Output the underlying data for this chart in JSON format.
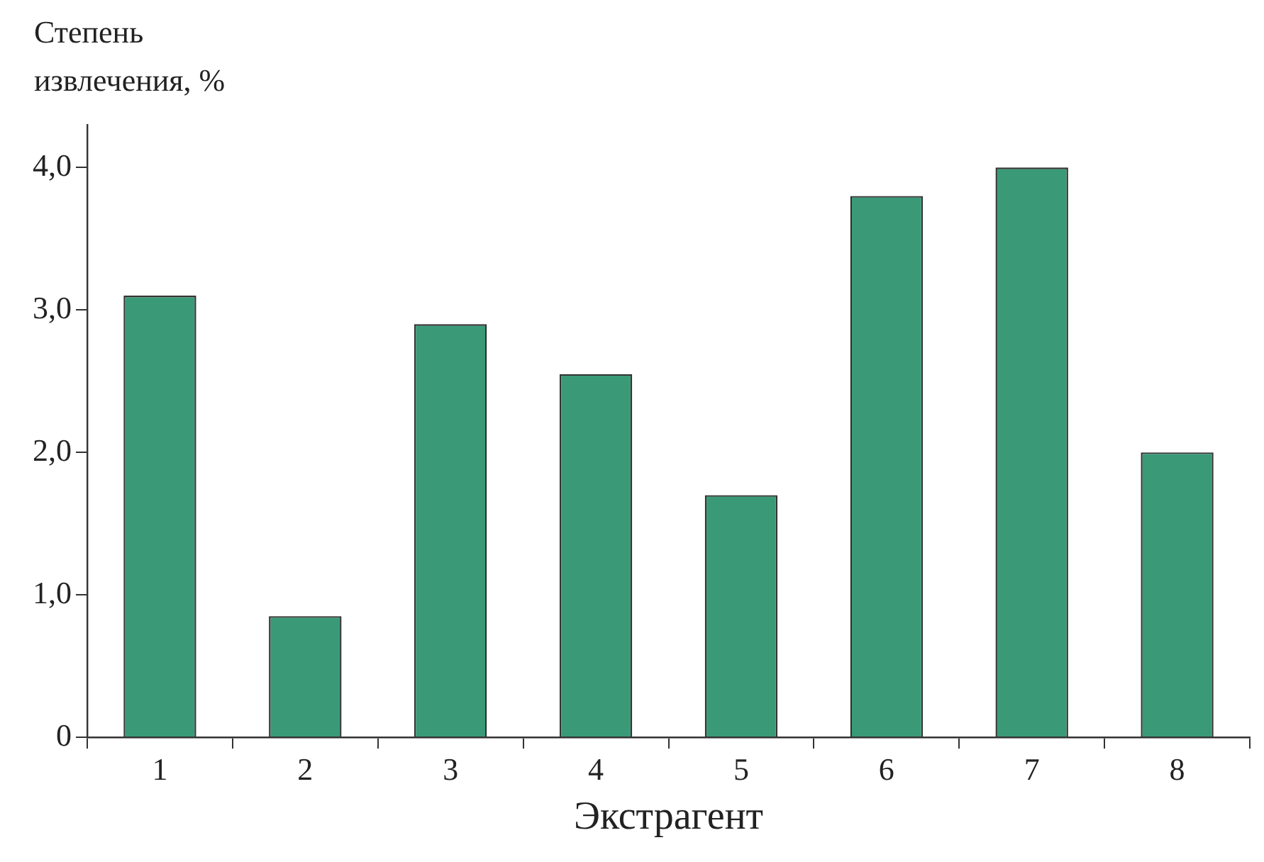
{
  "chart_data": {
    "type": "bar",
    "ylabel": "Степень извлечения, %",
    "xlabel": "Экстрагент",
    "categories": [
      "1",
      "2",
      "3",
      "4",
      "5",
      "6",
      "7",
      "8"
    ],
    "values": [
      3.1,
      0.85,
      2.9,
      2.55,
      1.7,
      3.8,
      4.0,
      2.0
    ],
    "color": "#3a9a78",
    "ylim": [
      0,
      4.3
    ],
    "yticks": [
      0,
      {
        "value": 1,
        "label": "1,0"
      },
      {
        "value": 2,
        "label": "2,0"
      },
      {
        "value": 3,
        "label": "3,0"
      },
      {
        "value": 4,
        "label": "4,0"
      }
    ],
    "grid": false,
    "legend": false
  }
}
